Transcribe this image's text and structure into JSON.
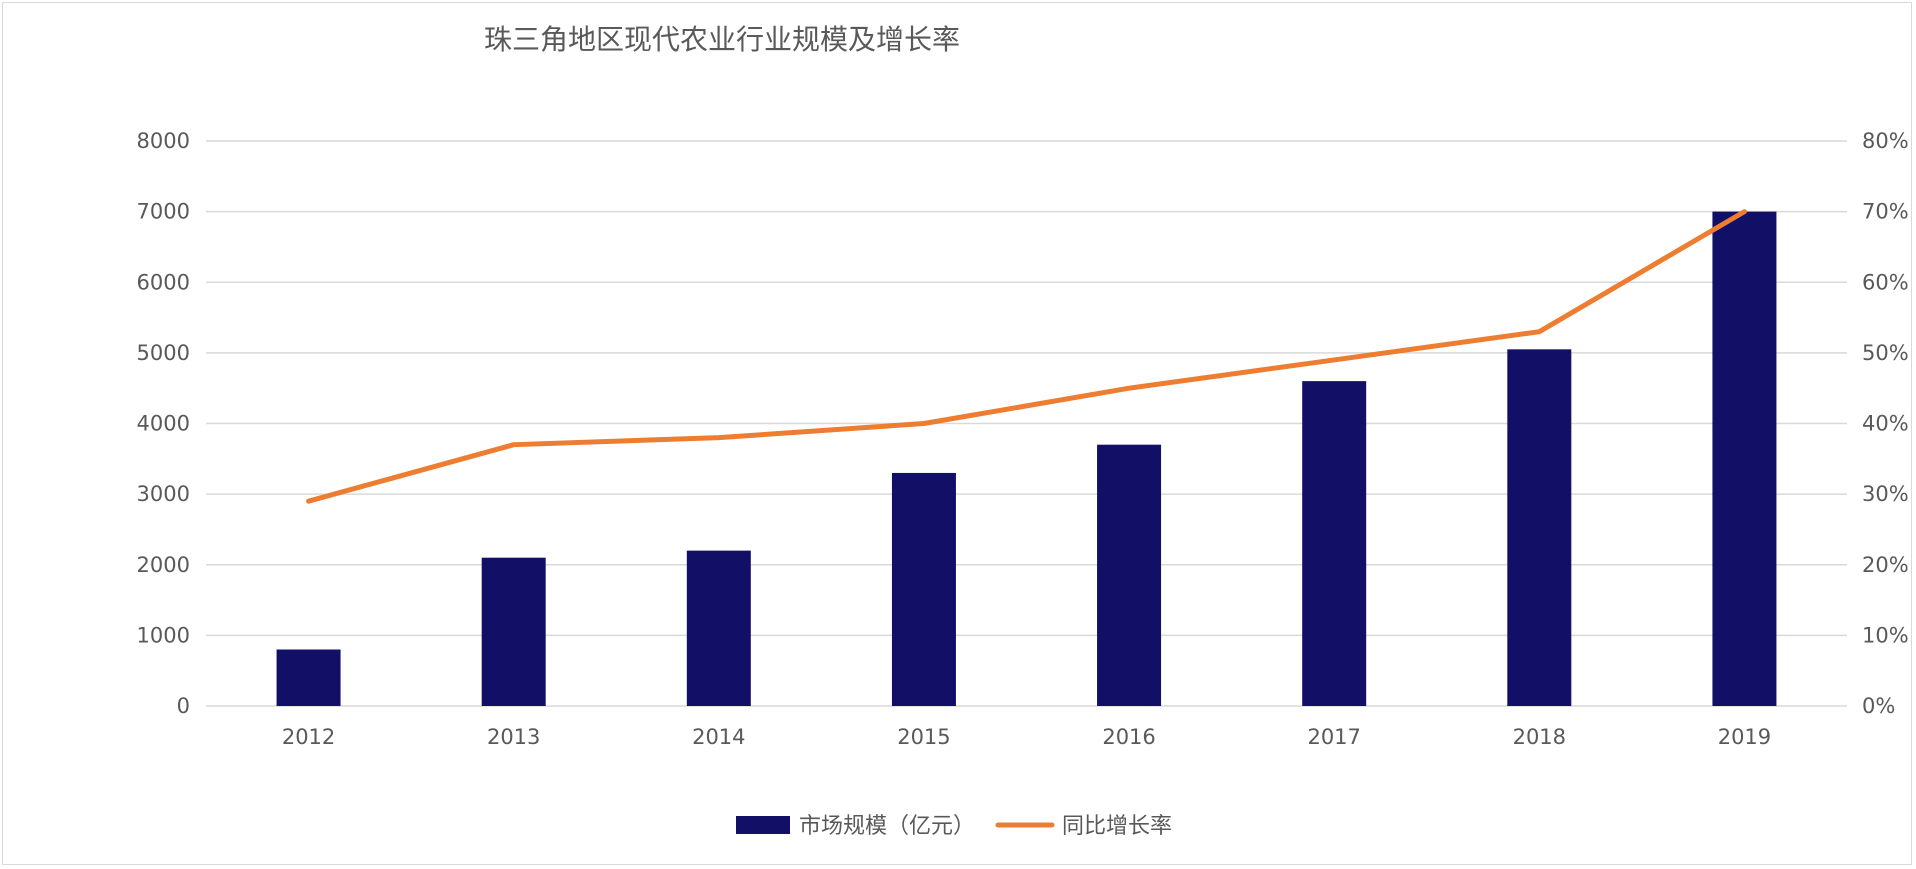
{
  "chart_data": {
    "type": "bar",
    "title": "珠三角地区现代农业行业规模及增长率",
    "categories": [
      "2012",
      "2013",
      "2014",
      "2015",
      "2016",
      "2017",
      "2018",
      "2019"
    ],
    "series": [
      {
        "name": "市场规模（亿元）",
        "type": "bar",
        "axis": "left",
        "color": "#120f66",
        "values": [
          800,
          2100,
          2200,
          3300,
          3700,
          4600,
          5050,
          7000
        ]
      },
      {
        "name": "同比增长率",
        "type": "line",
        "axis": "right",
        "color": "#ed7d31",
        "values": [
          0.29,
          0.37,
          0.38,
          0.4,
          0.45,
          0.49,
          0.53,
          0.7
        ]
      }
    ],
    "y_left": {
      "ylim": [
        0,
        8000
      ],
      "ticks": [
        "0",
        "1000",
        "2000",
        "3000",
        "4000",
        "5000",
        "6000",
        "7000",
        "8000"
      ]
    },
    "y_right": {
      "ylim": [
        0,
        0.8
      ],
      "ticks": [
        "0%",
        "10%",
        "20%",
        "30%",
        "40%",
        "50%",
        "60%",
        "70%",
        "80%"
      ]
    },
    "grid": true,
    "gridColor": "#d9d9d9",
    "legend": "bottom-center"
  }
}
